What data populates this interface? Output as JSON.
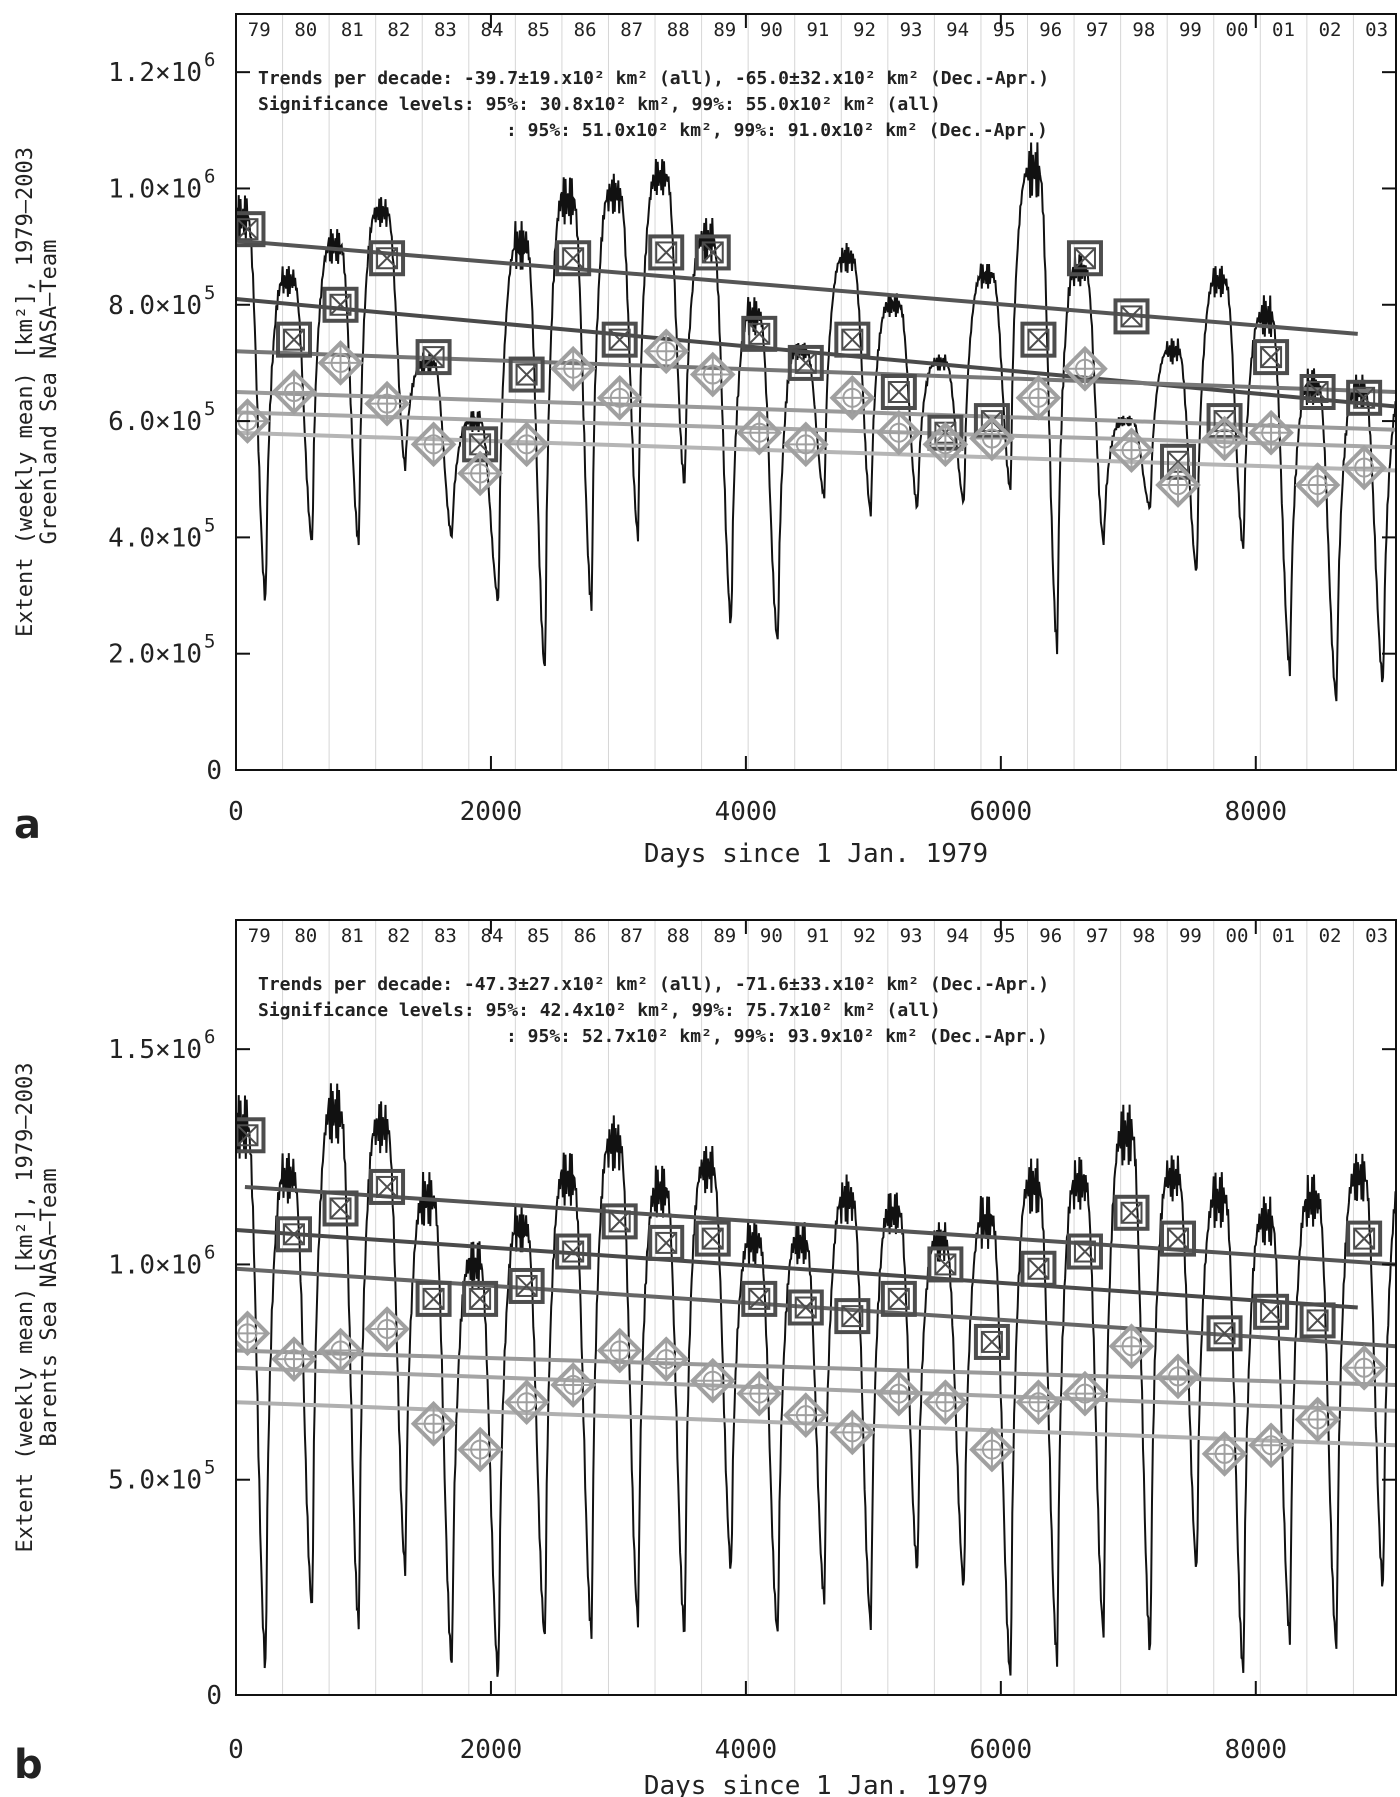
{
  "chart_data": [
    {
      "panel_label": "a",
      "type": "line",
      "ylabel_lines": [
        "Extent (weekly mean) [km²], 1979–2003",
        "Greenland Sea NASA–Team"
      ],
      "xlabel": "Days since 1 Jan. 1979",
      "xlim": [
        0,
        9100
      ],
      "ylim": [
        0,
        1300000
      ],
      "x_ticks": [
        0,
        2000,
        4000,
        6000,
        8000
      ],
      "x_tick_labels": [
        "0",
        "2000",
        "4000",
        "6000",
        "8000"
      ],
      "y_ticks": [
        0,
        200000,
        400000,
        600000,
        800000,
        1000000,
        1200000
      ],
      "y_tick_labels": [
        {
          "mantissa": "0",
          "exp": ""
        },
        {
          "mantissa": "2.0×10",
          "exp": "5"
        },
        {
          "mantissa": "4.0×10",
          "exp": "5"
        },
        {
          "mantissa": "6.0×10",
          "exp": "5"
        },
        {
          "mantissa": "8.0×10",
          "exp": "5"
        },
        {
          "mantissa": "1.0×10",
          "exp": "6"
        },
        {
          "mantissa": "1.2×10",
          "exp": "6"
        }
      ],
      "year_labels": [
        "79",
        "80",
        "81",
        "82",
        "83",
        "84",
        "85",
        "86",
        "87",
        "88",
        "89",
        "90",
        "91",
        "92",
        "93",
        "94",
        "95",
        "96",
        "97",
        "98",
        "99",
        "00",
        "01",
        "02",
        "03"
      ],
      "annotations": [
        "Trends per decade: -39.7±19.x10² km² (all), -65.0±32.x10² km² (Dec.-Apr.)",
        "Significance levels: 95%: 30.8x10² km², 99%: 55.0x10² km² (all)",
        ": 95%: 51.0x10² km², 99%: 91.0x10² km² (Dec.-Apr.)"
      ],
      "weekly_series": {
        "name": "",
        "year_max": [
          950000,
          840000,
          900000,
          960000,
          700000,
          600000,
          900000,
          980000,
          990000,
          1020000,
          910000,
          780000,
          720000,
          880000,
          800000,
          700000,
          850000,
          1030000,
          860000,
          600000,
          720000,
          840000,
          780000,
          660000,
          650000
        ],
        "year_min": [
          290000,
          390000,
          390000,
          520000,
          400000,
          290000,
          170000,
          280000,
          400000,
          490000,
          250000,
          220000,
          470000,
          440000,
          450000,
          460000,
          480000,
          210000,
          390000,
          450000,
          340000,
          380000,
          170000,
          120000,
          150000
        ]
      },
      "square_markers": {
        "name": "",
        "x": [
          90,
          455,
          820,
          1185,
          1550,
          1915,
          2280,
          2645,
          3010,
          3375,
          3740,
          4105,
          4470,
          4835,
          5200,
          5565,
          5930,
          6295,
          6660,
          7025,
          7390,
          7755,
          8120,
          8485,
          8850
        ],
        "y": [
          930000,
          740000,
          800000,
          880000,
          710000,
          560000,
          680000,
          880000,
          740000,
          890000,
          890000,
          750000,
          700000,
          740000,
          650000,
          580000,
          600000,
          740000,
          880000,
          780000,
          530000,
          600000,
          710000,
          650000,
          640000
        ]
      },
      "diamond_markers": {
        "name": "",
        "x": [
          90,
          455,
          820,
          1185,
          1550,
          1915,
          2280,
          2645,
          3010,
          3375,
          3740,
          4105,
          4470,
          4835,
          5200,
          5565,
          5930,
          6295,
          6660,
          7025,
          7390,
          7755,
          8120,
          8485,
          8850
        ],
        "y": [
          600000,
          650000,
          700000,
          630000,
          560000,
          510000,
          560000,
          690000,
          640000,
          720000,
          680000,
          580000,
          560000,
          640000,
          580000,
          560000,
          570000,
          640000,
          690000,
          550000,
          490000,
          570000,
          580000,
          490000,
          520000
        ]
      },
      "trend_lines": [
        {
          "shade": "#555555",
          "x": [
            0,
            8800
          ],
          "y": [
            910000,
            750000
          ]
        },
        {
          "shade": "#4a4a4a",
          "x": [
            0,
            9100
          ],
          "y": [
            810000,
            625000
          ]
        },
        {
          "shade": "#777777",
          "x": [
            0,
            9100
          ],
          "y": [
            720000,
            650000
          ]
        },
        {
          "shade": "#9a9a9a",
          "x": [
            0,
            9100
          ],
          "y": [
            650000,
            585000
          ]
        },
        {
          "shade": "#a8a8a8",
          "x": [
            0,
            9100
          ],
          "y": [
            615000,
            555000
          ]
        },
        {
          "shade": "#b5b5b5",
          "x": [
            0,
            9100
          ],
          "y": [
            580000,
            515000
          ]
        }
      ]
    },
    {
      "panel_label": "b",
      "type": "line",
      "ylabel_lines": [
        "Extent (weekly mean) [km²], 1979–2003",
        "Barents Sea NASA–Team"
      ],
      "xlabel": "Days since 1 Jan. 1979",
      "xlim": [
        0,
        9100
      ],
      "ylim": [
        0,
        1800000
      ],
      "x_ticks": [
        0,
        2000,
        4000,
        6000,
        8000
      ],
      "x_tick_labels": [
        "0",
        "2000",
        "4000",
        "6000",
        "8000"
      ],
      "y_ticks": [
        0,
        500000,
        1000000,
        1500000
      ],
      "y_tick_labels": [
        {
          "mantissa": "0",
          "exp": ""
        },
        {
          "mantissa": "5.0×10",
          "exp": "5"
        },
        {
          "mantissa": "1.0×10",
          "exp": "6"
        },
        {
          "mantissa": "1.5×10",
          "exp": "6"
        }
      ],
      "year_labels": [
        "79",
        "80",
        "81",
        "82",
        "83",
        "84",
        "85",
        "86",
        "87",
        "88",
        "89",
        "90",
        "91",
        "92",
        "93",
        "94",
        "95",
        "96",
        "97",
        "98",
        "99",
        "00",
        "01",
        "02",
        "03"
      ],
      "annotations": [
        "Trends per decade: -47.3±27.x10² km² (all), -71.6±33.x10² km² (Dec.-Apr.)",
        "Significance levels: 95%: 42.4x10² km², 99%: 75.7x10² km² (all)",
        ": 95%: 52.7x10² km², 99%: 93.9x10² km² (Dec.-Apr.)"
      ],
      "weekly_series": {
        "name": "",
        "year_max": [
          1320000,
          1200000,
          1350000,
          1320000,
          1150000,
          1000000,
          1080000,
          1200000,
          1280000,
          1170000,
          1220000,
          1050000,
          1050000,
          1150000,
          1120000,
          1050000,
          1100000,
          1180000,
          1190000,
          1300000,
          1200000,
          1150000,
          1100000,
          1150000,
          1200000
        ],
        "year_min": [
          60000,
          200000,
          160000,
          290000,
          70000,
          40000,
          130000,
          140000,
          170000,
          140000,
          290000,
          140000,
          220000,
          160000,
          290000,
          250000,
          40000,
          80000,
          140000,
          100000,
          290000,
          50000,
          130000,
          110000,
          250000
        ]
      },
      "square_markers": {
        "name": "",
        "x": [
          90,
          455,
          820,
          1185,
          1550,
          1915,
          2280,
          2645,
          3010,
          3375,
          3740,
          4105,
          4470,
          4835,
          5200,
          5565,
          5930,
          6295,
          6660,
          7025,
          7390,
          7755,
          8120,
          8485,
          8850
        ],
        "y": [
          1300000,
          1070000,
          1130000,
          1180000,
          920000,
          920000,
          950000,
          1030000,
          1100000,
          1050000,
          1060000,
          920000,
          900000,
          880000,
          920000,
          1000000,
          820000,
          990000,
          1030000,
          1120000,
          1060000,
          840000,
          890000,
          870000,
          1060000
        ]
      },
      "diamond_markers": {
        "name": "",
        "x": [
          90,
          455,
          820,
          1185,
          1550,
          1915,
          2280,
          2645,
          3010,
          3375,
          3740,
          4105,
          4470,
          4835,
          5200,
          5565,
          5930,
          6295,
          6660,
          7025,
          7390,
          7755,
          8120,
          8485,
          8850
        ],
        "y": [
          840000,
          780000,
          800000,
          850000,
          630000,
          570000,
          680000,
          720000,
          800000,
          780000,
          730000,
          700000,
          650000,
          610000,
          700000,
          680000,
          570000,
          680000,
          700000,
          810000,
          740000,
          560000,
          580000,
          640000,
          760000
        ]
      },
      "trend_lines": [
        {
          "shade": "#555555",
          "x": [
            70,
            9100
          ],
          "y": [
            1180000,
            1000000
          ]
        },
        {
          "shade": "#4a4a4a",
          "x": [
            0,
            8800
          ],
          "y": [
            1080000,
            900000
          ]
        },
        {
          "shade": "#666666",
          "x": [
            0,
            9100
          ],
          "y": [
            990000,
            810000
          ]
        },
        {
          "shade": "#999999",
          "x": [
            0,
            9100
          ],
          "y": [
            800000,
            720000
          ]
        },
        {
          "shade": "#a5a5a5",
          "x": [
            0,
            9100
          ],
          "y": [
            760000,
            660000
          ]
        },
        {
          "shade": "#b0b0b0",
          "x": [
            0,
            9100
          ],
          "y": [
            680000,
            580000
          ]
        }
      ]
    }
  ]
}
